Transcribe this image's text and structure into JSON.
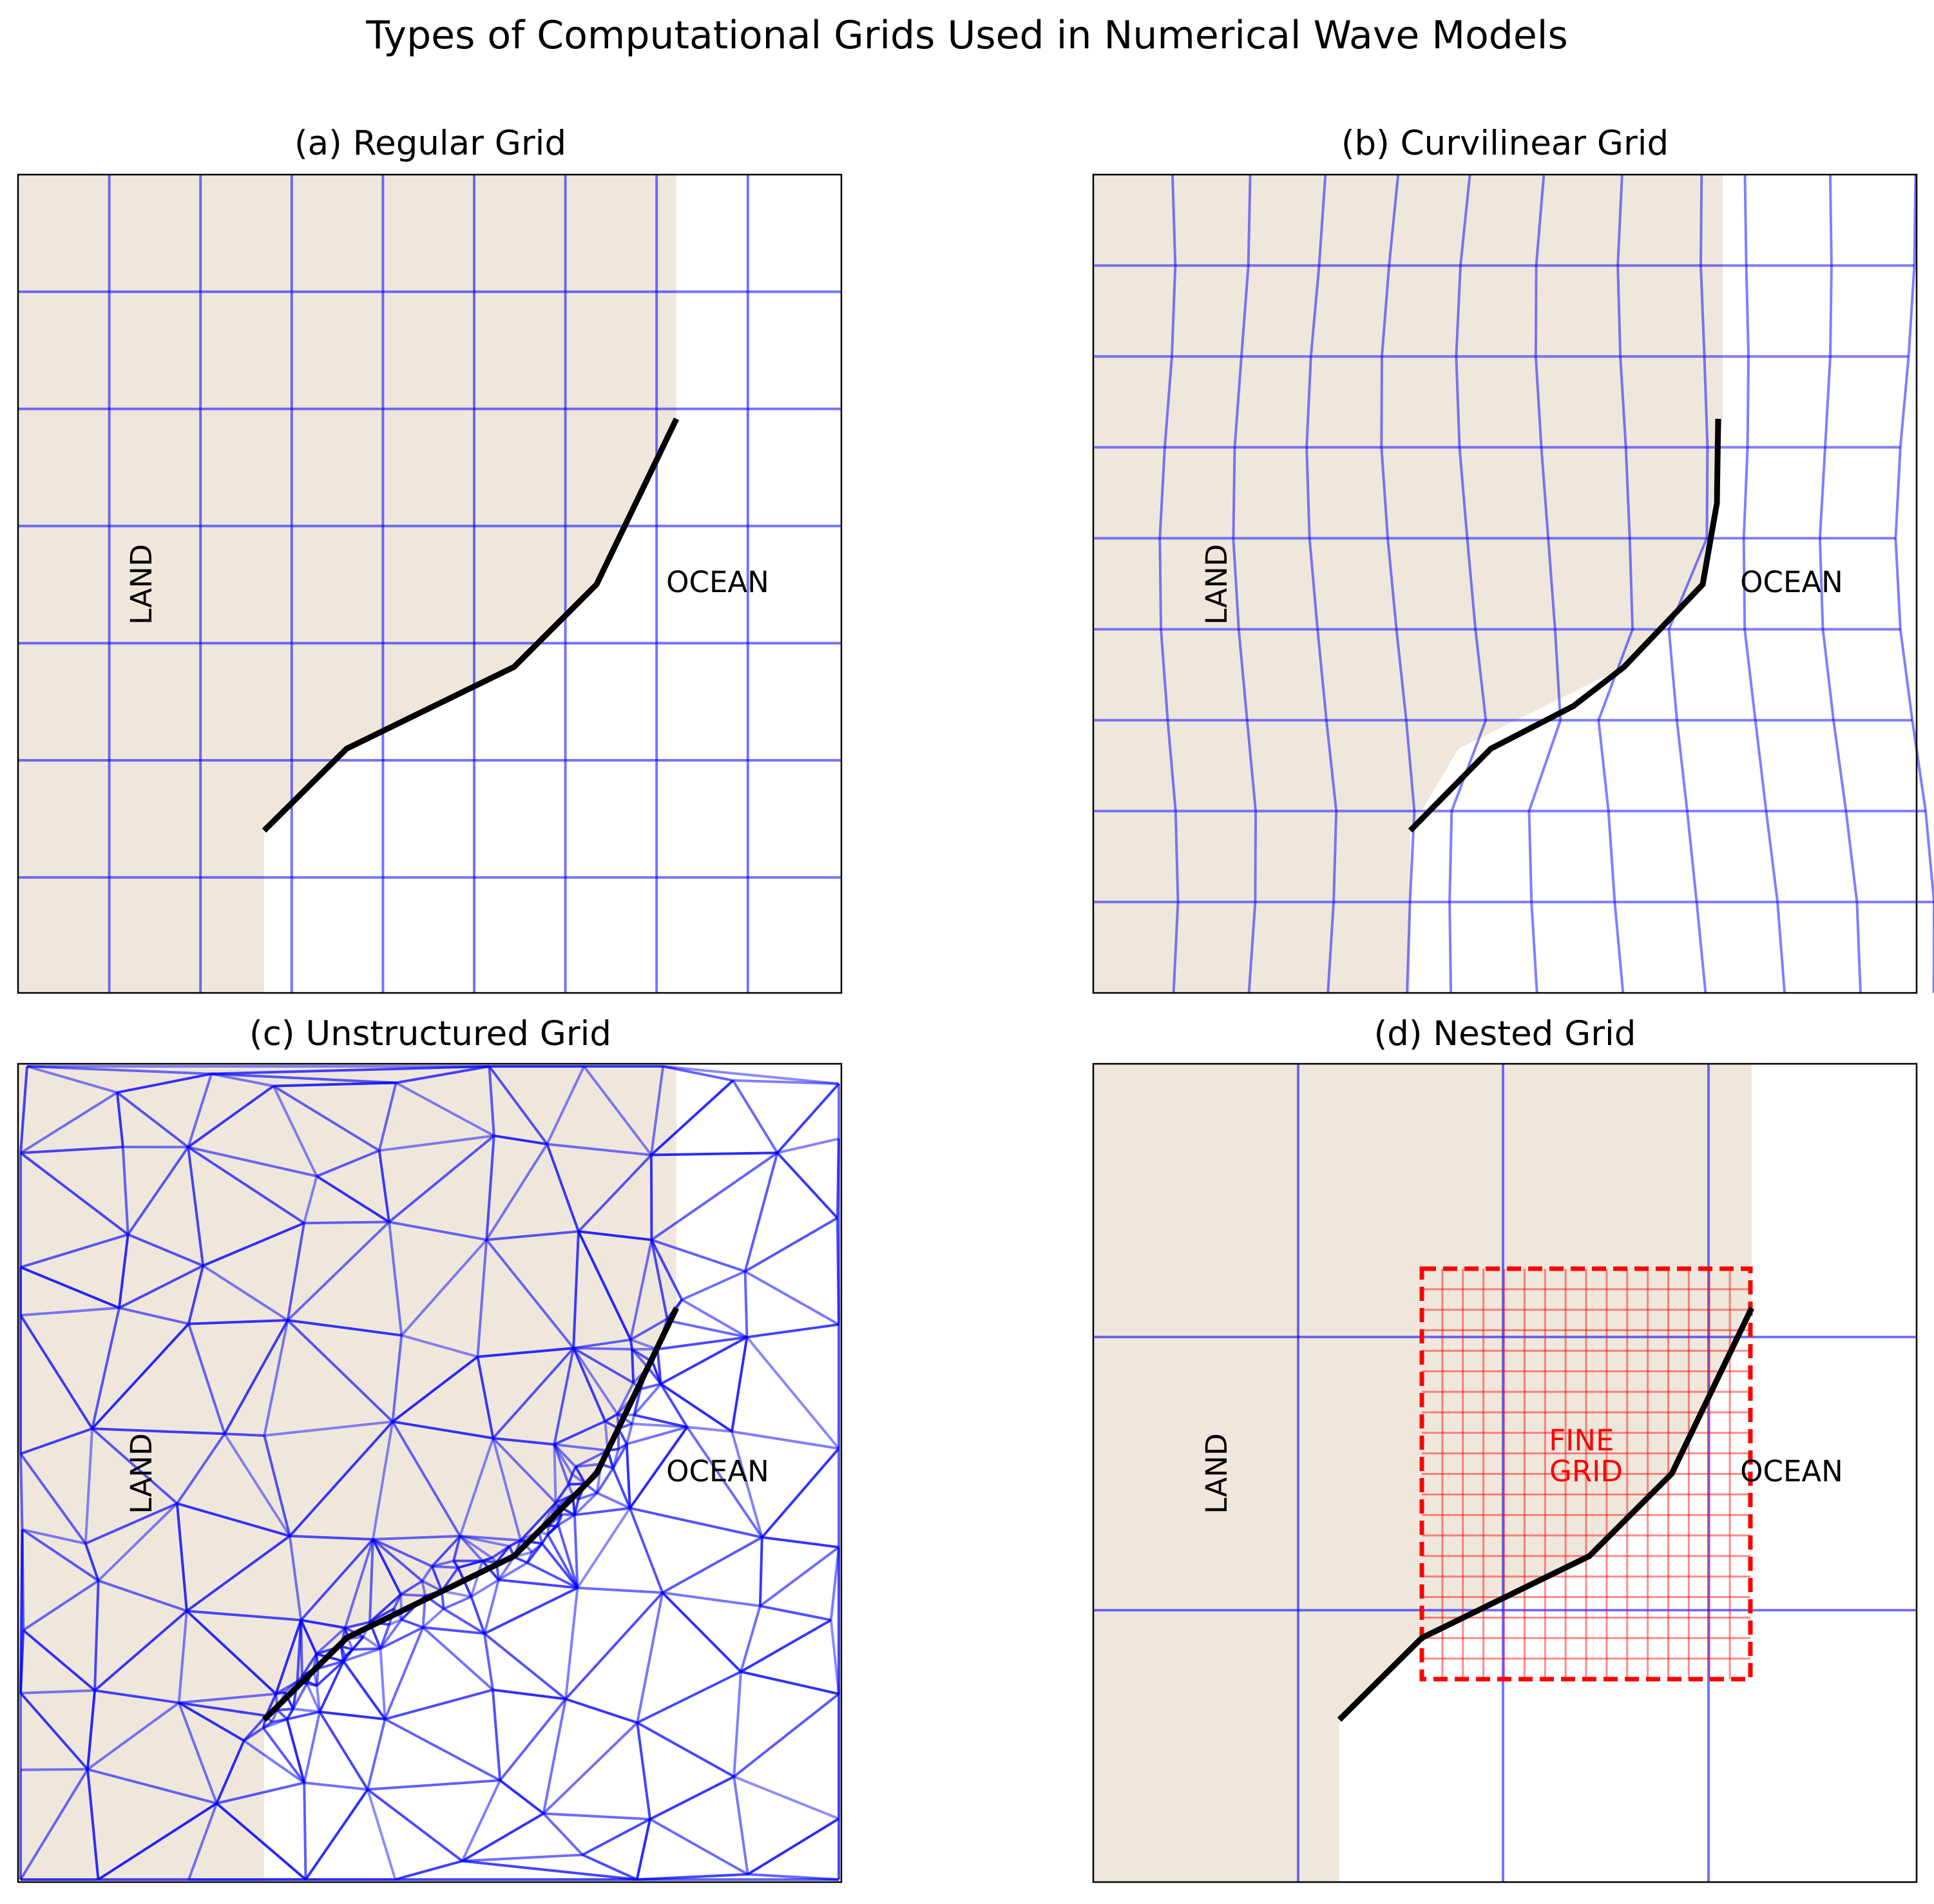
{
  "title": "Types of Computational Grids Used in Numerical Wave Models",
  "colors": {
    "land": "#efe7dc",
    "grid_line": "#0000ff",
    "coastline": "#000000",
    "fine_grid": "#ff0000"
  },
  "panels": [
    {
      "id": "a",
      "title": "(a) Regular Grid",
      "land_label": "LAND",
      "ocean_label": "OCEAN",
      "grid_type": "regular"
    },
    {
      "id": "b",
      "title": "(b) Curvilinear Grid",
      "land_label": "LAND",
      "ocean_label": "OCEAN",
      "grid_type": "curvilinear"
    },
    {
      "id": "c",
      "title": "(c) Unstructured Grid",
      "land_label": "LAND",
      "ocean_label": "OCEAN",
      "grid_type": "unstructured"
    },
    {
      "id": "d",
      "title": "(d) Nested Grid",
      "land_label": "LAND",
      "ocean_label": "OCEAN",
      "grid_type": "nested",
      "fine_label": "FINE\nGRID"
    }
  ]
}
